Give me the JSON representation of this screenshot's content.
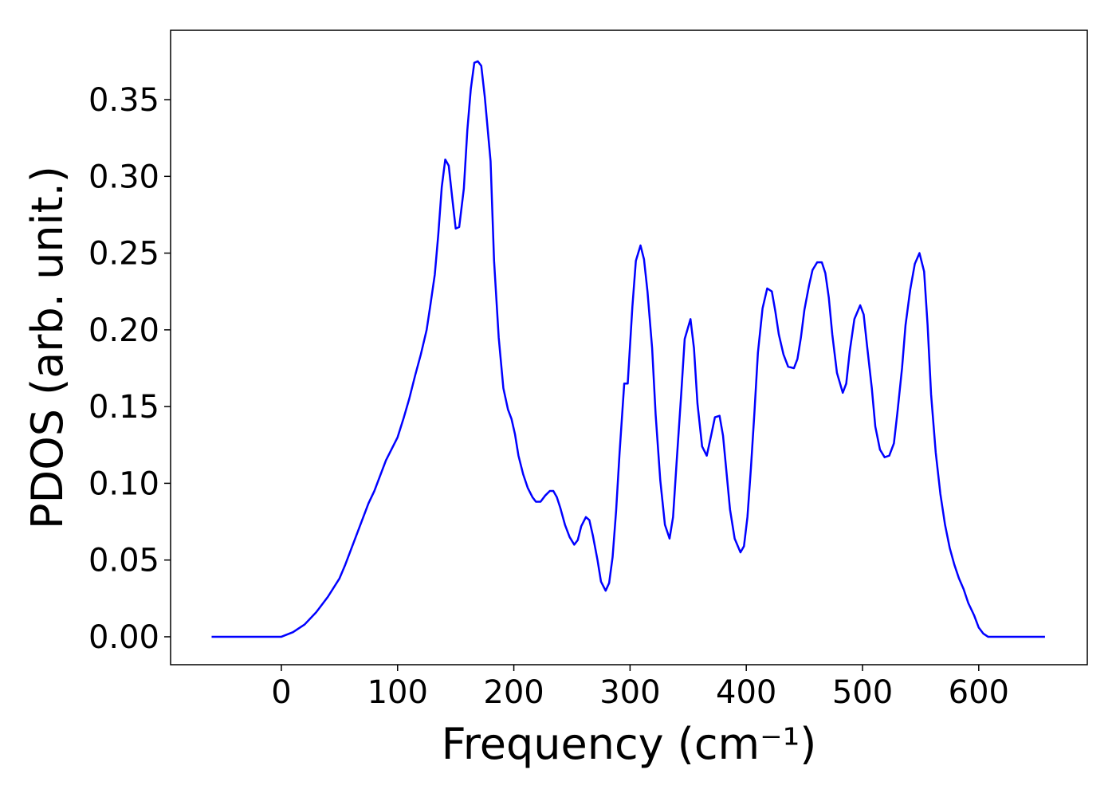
{
  "chart_data": {
    "type": "line",
    "xlabel": "Frequency (cm⁻¹)",
    "ylabel": "PDOS (arb. unit.)",
    "xlim": [
      -95.3,
      693.4
    ],
    "ylim": [
      -0.0182,
      0.3952
    ],
    "xticks": [
      0,
      100,
      200,
      300,
      400,
      500,
      600
    ],
    "yticks": [
      {
        "value": 0,
        "label": "0.00"
      },
      {
        "value": 0.05,
        "label": "0.05"
      },
      {
        "value": 0.1,
        "label": "0.10"
      },
      {
        "value": 0.15,
        "label": "0.15"
      },
      {
        "value": 0.2,
        "label": "0.20"
      },
      {
        "value": 0.25,
        "label": "0.25"
      },
      {
        "value": 0.3,
        "label": "0.30"
      },
      {
        "value": 0.35,
        "label": "0.35"
      }
    ],
    "x": [
      -60,
      0,
      10,
      20,
      30,
      40,
      50,
      55,
      60,
      65,
      70,
      75,
      80,
      90,
      100,
      105,
      110,
      115,
      120,
      125,
      128,
      132,
      135,
      138,
      141,
      144,
      147,
      150,
      153,
      157,
      160,
      163,
      166,
      169,
      172,
      175,
      180,
      183,
      187,
      191,
      195,
      198,
      201,
      204,
      208,
      212,
      216,
      219,
      223,
      227,
      231,
      234,
      237,
      240,
      244,
      248,
      252,
      255,
      258,
      262,
      265,
      268,
      272,
      275,
      279,
      282,
      285,
      288,
      291,
      295,
      298,
      302,
      305,
      309,
      312,
      315,
      319,
      322,
      326,
      330,
      334,
      337,
      340,
      344,
      347,
      352,
      355,
      358,
      362,
      366,
      370,
      373,
      377,
      380,
      383,
      386,
      390,
      395,
      398,
      401,
      404,
      407,
      410,
      414,
      418,
      422,
      425,
      428,
      432,
      436,
      441,
      444,
      447,
      450,
      454,
      457,
      461,
      465,
      468,
      471,
      474,
      478,
      483,
      486,
      489,
      493,
      498,
      501,
      504,
      508,
      511,
      515,
      519,
      523,
      527,
      530,
      534,
      537,
      541,
      545,
      549,
      553,
      556,
      559,
      563,
      567,
      571,
      575,
      579,
      583,
      587,
      591,
      596,
      600,
      604,
      608,
      657
    ],
    "series": [
      {
        "color": "#0000ff",
        "values": [
          0,
          0,
          0.003,
          0.008,
          0.016,
          0.026,
          0.038,
          0.047,
          0.057,
          0.067,
          0.077,
          0.087,
          0.095,
          0.115,
          0.13,
          0.142,
          0.155,
          0.17,
          0.184,
          0.2,
          0.215,
          0.236,
          0.262,
          0.293,
          0.311,
          0.307,
          0.286,
          0.266,
          0.267,
          0.292,
          0.33,
          0.357,
          0.374,
          0.375,
          0.372,
          0.352,
          0.31,
          0.245,
          0.195,
          0.162,
          0.148,
          0.142,
          0.132,
          0.118,
          0.106,
          0.097,
          0.091,
          0.088,
          0.088,
          0.092,
          0.095,
          0.095,
          0.091,
          0.084,
          0.073,
          0.065,
          0.06,
          0.063,
          0.072,
          0.078,
          0.076,
          0.066,
          0.05,
          0.036,
          0.03,
          0.035,
          0.052,
          0.082,
          0.12,
          0.165,
          0.165,
          0.215,
          0.245,
          0.255,
          0.246,
          0.225,
          0.188,
          0.145,
          0.102,
          0.073,
          0.064,
          0.078,
          0.113,
          0.158,
          0.194,
          0.207,
          0.188,
          0.152,
          0.124,
          0.118,
          0.132,
          0.143,
          0.144,
          0.131,
          0.107,
          0.083,
          0.064,
          0.055,
          0.059,
          0.078,
          0.11,
          0.146,
          0.185,
          0.214,
          0.227,
          0.225,
          0.212,
          0.197,
          0.184,
          0.176,
          0.175,
          0.181,
          0.195,
          0.213,
          0.229,
          0.239,
          0.244,
          0.244,
          0.237,
          0.221,
          0.197,
          0.172,
          0.159,
          0.165,
          0.186,
          0.207,
          0.216,
          0.21,
          0.189,
          0.162,
          0.137,
          0.122,
          0.117,
          0.118,
          0.126,
          0.146,
          0.175,
          0.203,
          0.226,
          0.243,
          0.25,
          0.238,
          0.203,
          0.158,
          0.12,
          0.093,
          0.073,
          0.058,
          0.047,
          0.038,
          0.031,
          0.022,
          0.014,
          0.006,
          0.002,
          0,
          0
        ]
      }
    ]
  }
}
